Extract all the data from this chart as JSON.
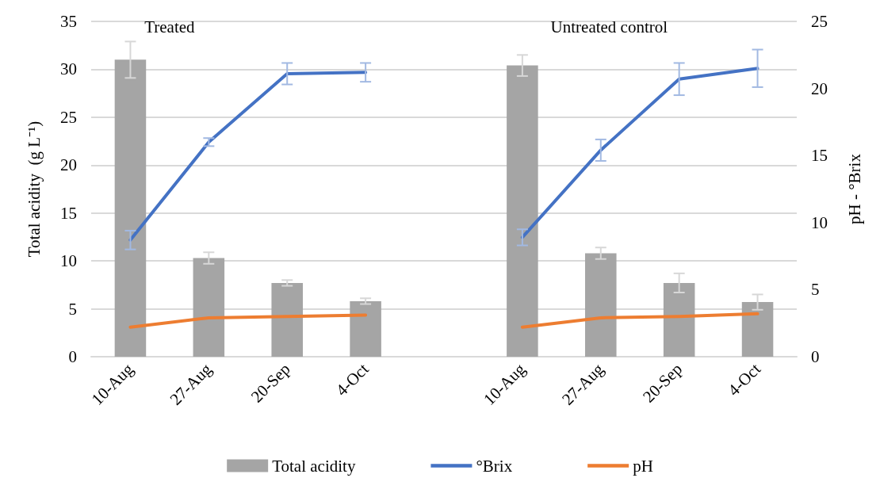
{
  "chart_data": {
    "type": "bar",
    "ylabel": "Total acidity  (g L⁻¹)",
    "y2label": "pH - °Brix",
    "annotations": [
      "Treated",
      "Untreated control"
    ],
    "categories": [
      "10-Aug",
      "27-Aug",
      "20-Sep",
      "4-Oct",
      null,
      "10-Aug",
      "27-Aug",
      "20-Sep",
      "4-Oct"
    ],
    "series": [
      {
        "name": "Total acidity",
        "color": "#a5a5a5",
        "values": [
          31.0,
          10.3,
          7.7,
          5.8,
          null,
          30.4,
          10.8,
          7.7,
          5.7
        ],
        "errors": [
          1.9,
          0.6,
          0.3,
          0.3,
          null,
          1.1,
          0.6,
          1.0,
          0.8
        ]
      },
      {
        "name": "°Brix",
        "type": "line",
        "axis": "y2",
        "color": "#4472c4",
        "values": [
          8.7,
          16.0,
          21.1,
          21.2,
          null,
          8.9,
          15.4,
          20.7,
          21.5
        ],
        "errors": [
          0.7,
          0.3,
          0.8,
          0.7,
          null,
          0.6,
          0.8,
          1.2,
          1.4
        ]
      },
      {
        "name": "pH",
        "type": "line",
        "axis": "y2",
        "color": "#ed7d31",
        "values": [
          2.2,
          2.9,
          3.0,
          3.1,
          null,
          2.2,
          2.9,
          3.0,
          3.2
        ]
      }
    ],
    "ylim": [
      0,
      35
    ],
    "yticks": [
      0,
      5,
      10,
      15,
      20,
      25,
      30,
      35
    ],
    "y2lim": [
      0,
      25
    ],
    "y2ticks": [
      0,
      5,
      10,
      15,
      20,
      25
    ],
    "grid": "y",
    "legend": "bottom",
    "marker": "none",
    "line_style": "solid"
  }
}
